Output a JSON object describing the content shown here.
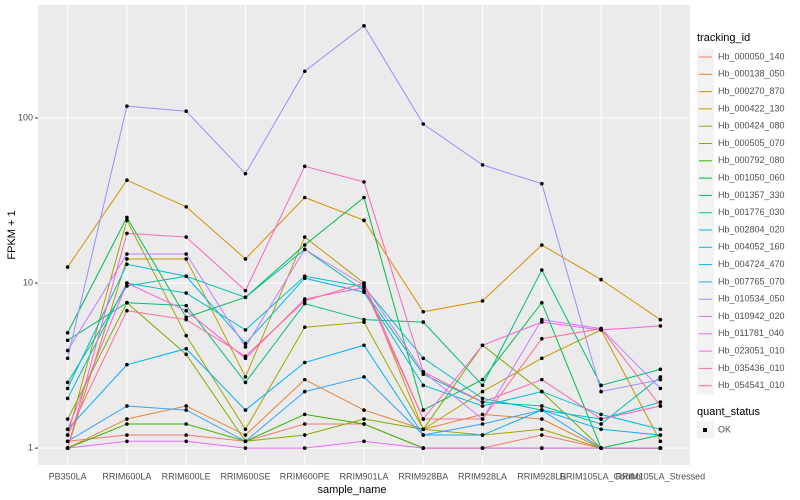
{
  "chart_data": {
    "type": "line",
    "ylabel": "FPKM + 1",
    "xlabel": "sample_name",
    "ylog": true,
    "grid": true,
    "ylim": [
      0.79,
      484
    ],
    "yticks": [
      1,
      10,
      100
    ],
    "categories": [
      "PB350LA",
      "RRIM600LA",
      "RRIM600LE",
      "RRIM600SE",
      "RRIM600PE",
      "RRIM901LA",
      "RRIM928BA",
      "RRIM928LA",
      "RRIM928LB",
      "RRIM105LA_Control",
      "RRIM105LA_Stressed"
    ],
    "legend_title": "tracking_id",
    "series": [
      {
        "name": "Hb_000050_140",
        "color": "#F8766D",
        "values": [
          1.1,
          1.2,
          1.2,
          1.1,
          1.4,
          1.4,
          1.0,
          1.0,
          1.2,
          1.0,
          1.0
        ]
      },
      {
        "name": "Hb_000138_050",
        "color": "#EA8331",
        "values": [
          1.0,
          1.5,
          1.8,
          1.2,
          2.6,
          1.7,
          1.3,
          1.6,
          1.5,
          1.0,
          1.0
        ]
      },
      {
        "name": "Hb_000270_870",
        "color": "#D89000",
        "values": [
          12.5,
          42,
          29,
          14,
          33,
          24,
          6.7,
          7.8,
          17,
          10.5,
          6
        ]
      },
      {
        "name": "Hb_000422_130",
        "color": "#C09B00",
        "values": [
          1.0,
          14,
          14,
          2.7,
          19,
          10,
          1.3,
          2.2,
          3.5,
          5.2,
          1.1
        ]
      },
      {
        "name": "Hb_000424_080",
        "color": "#A3A500",
        "values": [
          1.2,
          24,
          4.8,
          1.3,
          5.4,
          5.8,
          1.3,
          1.2,
          1.3,
          1.0,
          1.0
        ]
      },
      {
        "name": "Hb_000505_070",
        "color": "#7CAE00",
        "values": [
          1.5,
          7.6,
          3.7,
          1.1,
          1.2,
          1.5,
          1.3,
          4.2,
          2.2,
          1.0,
          1.0
        ]
      },
      {
        "name": "Hb_000792_080",
        "color": "#39B600",
        "values": [
          1.0,
          1.4,
          1.4,
          1.1,
          1.6,
          1.4,
          1.0,
          1.0,
          1.0,
          1.0,
          1.0
        ]
      },
      {
        "name": "Hb_001050_060",
        "color": "#00BB4E",
        "values": [
          5,
          25,
          6.2,
          8.2,
          17,
          33,
          1.7,
          2.6,
          7.6,
          1.0,
          1.2
        ]
      },
      {
        "name": "Hb_001357_330",
        "color": "#00BF7D",
        "values": [
          4.5,
          7.6,
          7.3,
          2.5,
          7.5,
          6,
          5.8,
          2.4,
          12,
          2.4,
          3
        ]
      },
      {
        "name": "Hb_001776_030",
        "color": "#00C1A3",
        "values": [
          2.5,
          9.6,
          11,
          8.2,
          16,
          9,
          2.8,
          1.9,
          1.8,
          1.4,
          2.7
        ]
      },
      {
        "name": "Hb_002804_020",
        "color": "#00BFC4",
        "values": [
          2,
          10,
          8.7,
          5.2,
          11,
          9.5,
          3.5,
          2.0,
          1.7,
          1.5,
          1.9
        ]
      },
      {
        "name": "Hb_004052_160",
        "color": "#00BAE0",
        "values": [
          2.3,
          13,
          11,
          4.3,
          10.7,
          8.8,
          2.4,
          1.8,
          2.2,
          1.6,
          1.3
        ]
      },
      {
        "name": "Hb_004724_470",
        "color": "#00B0F6",
        "values": [
          1.3,
          3.2,
          4,
          1.7,
          3.3,
          4.2,
          1.2,
          1.2,
          1.7,
          1.3,
          1.2
        ]
      },
      {
        "name": "Hb_007765_070",
        "color": "#35A2FF",
        "values": [
          1.1,
          1.8,
          1.7,
          1.1,
          2.2,
          2.7,
          1.2,
          1.4,
          1.7,
          1.0,
          1.0
        ]
      },
      {
        "name": "Hb_010534_050",
        "color": "#9590FF",
        "values": [
          3.5,
          118,
          110,
          46,
          192,
          362,
          92,
          52,
          40,
          2.2,
          2.6
        ]
      },
      {
        "name": "Hb_010942_020",
        "color": "#C77CFF",
        "values": [
          3.9,
          15,
          15,
          4.1,
          16,
          9.7,
          2.9,
          1.5,
          6,
          5.3,
          2.3
        ]
      },
      {
        "name": "Hb_011781_040",
        "color": "#E76BF3",
        "values": [
          1.0,
          1.1,
          1.1,
          1.0,
          1.0,
          1.1,
          1.0,
          1.0,
          1.0,
          1.0,
          1.0
        ]
      },
      {
        "name": "Hb_023051_010",
        "color": "#FA62DB",
        "values": [
          1.3,
          10,
          6.8,
          3.5,
          8,
          9.4,
          1.5,
          4.2,
          5.8,
          5.2,
          5.5
        ]
      },
      {
        "name": "Hb_035436_010",
        "color": "#FF62BC",
        "values": [
          1.0,
          20,
          19,
          9,
          51,
          41,
          2.9,
          1.9,
          2.6,
          1.5,
          1.8
        ]
      },
      {
        "name": "Hb_054541_010",
        "color": "#FF6C91",
        "values": [
          1.2,
          6.8,
          6,
          3.6,
          7.8,
          10,
          1.5,
          1.5,
          4.6,
          5.3,
          1.8
        ]
      }
    ],
    "legend2_title": "quant_status",
    "legend2_labels": [
      "OK"
    ],
    "point_color": "#000000"
  }
}
